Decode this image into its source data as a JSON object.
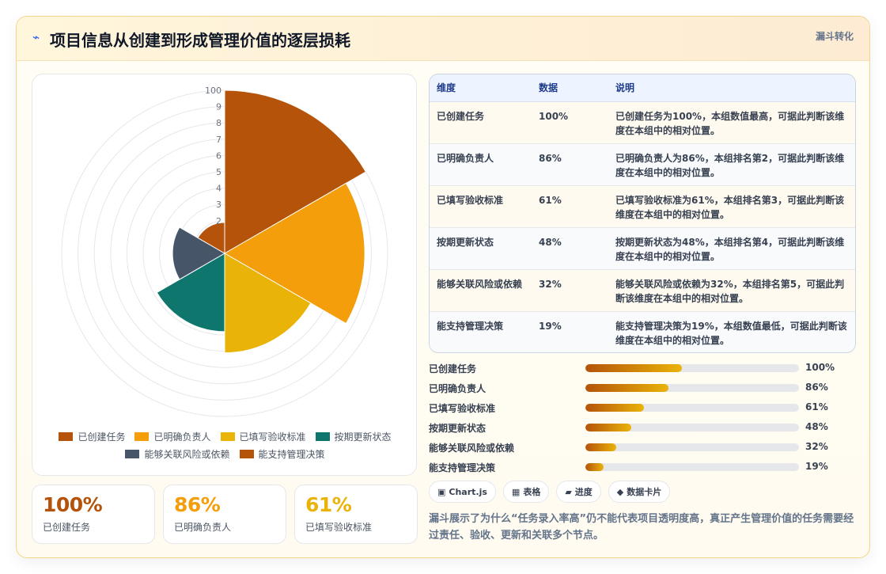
{
  "header": {
    "icon": "line-icon",
    "title": "项目信息从创建到形成管理价值的逐层损耗",
    "tag": "漏斗转化"
  },
  "chart_data": {
    "type": "polarArea",
    "categories": [
      "已创建任务",
      "已明确负责人",
      "已填写验收标准",
      "按期更新状态",
      "能够关联风险或依赖",
      "能支持管理决策"
    ],
    "values": [
      100,
      86,
      61,
      48,
      32,
      19
    ],
    "colors": [
      "#b45309",
      "#f59e0b",
      "#eab308",
      "#0f766e",
      "#475569",
      "#b45309"
    ],
    "ticks": [
      "100",
      "9",
      "8",
      "7",
      "6",
      "5",
      "4",
      "3",
      "2"
    ],
    "rlim": [
      0,
      100
    ]
  },
  "kpis": [
    {
      "value": "100%",
      "label": "已创建任务",
      "color": "#b45309"
    },
    {
      "value": "86%",
      "label": "已明确负责人",
      "color": "#f59e0b"
    },
    {
      "value": "61%",
      "label": "已填写验收标准",
      "color": "#eab308"
    }
  ],
  "table": {
    "headers": [
      "维度",
      "数据",
      "说明"
    ],
    "rows": [
      {
        "dim": "已创建任务",
        "value": "100%",
        "desc": "已创建任务为100%，本组数值最高，可据此判断该维度在本组中的相对位置。"
      },
      {
        "dim": "已明确负责人",
        "value": "86%",
        "desc": "已明确负责人为86%，本组排名第2，可据此判断该维度在本组中的相对位置。"
      },
      {
        "dim": "已填写验收标准",
        "value": "61%",
        "desc": "已填写验收标准为61%，本组排名第3，可据此判断该维度在本组中的相对位置。"
      },
      {
        "dim": "按期更新状态",
        "value": "48%",
        "desc": "按期更新状态为48%，本组排名第4，可据此判断该维度在本组中的相对位置。"
      },
      {
        "dim": "能够关联风险或依赖",
        "value": "32%",
        "desc": "能够关联风险或依赖为32%，本组排名第5，可据此判断该维度在本组中的相对位置。"
      },
      {
        "dim": "能支持管理决策",
        "value": "19%",
        "desc": "能支持管理决策为19%，本组数值最低，可据此判断该维度在本组中的相对位置。"
      }
    ]
  },
  "bars": [
    {
      "label": "已创建任务",
      "value": "100%",
      "fill": 0.45
    },
    {
      "label": "已明确负责人",
      "value": "86%",
      "fill": 0.39
    },
    {
      "label": "已填写验收标准",
      "value": "61%",
      "fill": 0.275
    },
    {
      "label": "按期更新状态",
      "value": "48%",
      "fill": 0.215
    },
    {
      "label": "能够关联风险或依赖",
      "value": "32%",
      "fill": 0.145
    },
    {
      "label": "能支持管理决策",
      "value": "19%",
      "fill": 0.085
    }
  ],
  "chips": [
    {
      "icon": "▣",
      "label": "Chart.js"
    },
    {
      "icon": "▦",
      "label": "表格"
    },
    {
      "icon": "▰",
      "label": "进度"
    },
    {
      "icon": "◆",
      "label": "数据卡片"
    }
  ],
  "note": "漏斗展示了为什么“任务录入率高”仍不能代表项目透明度高，真正产生管理价值的任务需要经过责任、验收、更新和关联多个节点。"
}
